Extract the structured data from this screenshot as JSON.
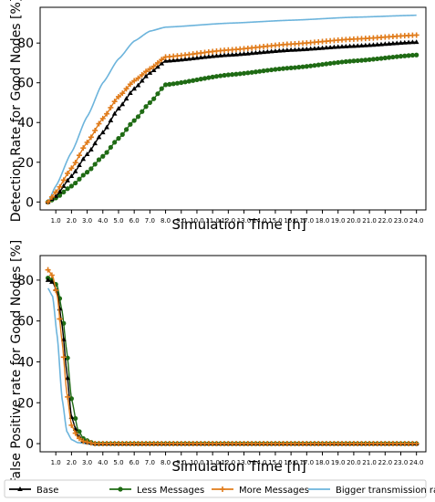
{
  "chart_data": [
    {
      "type": "line",
      "xlabel": "Simulation Time [h]",
      "ylabel": "Detection Rate for Good Nodes [%]",
      "xlim": [
        0.0,
        24.6
      ],
      "ylim": [
        -4,
        98
      ],
      "xticks": [
        "1.0",
        "2.0",
        "3.0",
        "4.0",
        "5.0",
        "6.0",
        "7.0",
        "8.0",
        "9.0",
        "10.0",
        "11.0",
        "12.0",
        "13.0",
        "14.0",
        "15.0",
        "16.0",
        "17.0",
        "18.0",
        "19.0",
        "20.0",
        "21.0",
        "22.0",
        "23.0",
        "24.0"
      ],
      "yticks": [
        "0",
        "20",
        "40",
        "60",
        "80"
      ],
      "x_range": [
        0.5,
        24.0
      ],
      "series": [
        {
          "name": "Base",
          "color": "#000000",
          "marker": "triangle",
          "knots": [
            [
              0.5,
              0
            ],
            [
              1.0,
              3
            ],
            [
              2.0,
              13
            ],
            [
              3.0,
              24
            ],
            [
              4.0,
              35
            ],
            [
              5.0,
              47
            ],
            [
              6.0,
              57
            ],
            [
              7.0,
              65
            ],
            [
              8.0,
              71
            ],
            [
              12.0,
              74
            ],
            [
              16.0,
              76.5
            ],
            [
              20.0,
              78.5
            ],
            [
              24.0,
              80.5
            ]
          ]
        },
        {
          "name": "Less Messages",
          "color": "#1f6b14",
          "marker": "circle",
          "knots": [
            [
              0.5,
              0
            ],
            [
              1.0,
              2
            ],
            [
              2.0,
              8
            ],
            [
              3.0,
              15
            ],
            [
              4.0,
              23
            ],
            [
              5.0,
              32
            ],
            [
              6.0,
              41
            ],
            [
              7.0,
              50
            ],
            [
              8.0,
              59
            ],
            [
              12.0,
              64
            ],
            [
              16.0,
              67.5
            ],
            [
              20.0,
              71
            ],
            [
              24.0,
              74
            ]
          ]
        },
        {
          "name": "More Messages",
          "color": "#e07b1a",
          "marker": "plus",
          "knots": [
            [
              0.5,
              0
            ],
            [
              1.0,
              5
            ],
            [
              2.0,
              17
            ],
            [
              3.0,
              30
            ],
            [
              4.0,
              42
            ],
            [
              5.0,
              53
            ],
            [
              6.0,
              61
            ],
            [
              7.0,
              67
            ],
            [
              8.0,
              73
            ],
            [
              12.0,
              76.5
            ],
            [
              16.0,
              79.5
            ],
            [
              20.0,
              82
            ],
            [
              24.0,
              84
            ]
          ]
        },
        {
          "name": "Bigger transmission rate",
          "color": "#6cb4dc",
          "marker": "none",
          "knots": [
            [
              0.5,
              0
            ],
            [
              1.0,
              8
            ],
            [
              2.0,
              25
            ],
            [
              3.0,
              43
            ],
            [
              4.0,
              60
            ],
            [
              5.0,
              72
            ],
            [
              6.0,
              81
            ],
            [
              7.0,
              86
            ],
            [
              8.0,
              88
            ],
            [
              12.0,
              90
            ],
            [
              16.0,
              91.5
            ],
            [
              20.0,
              93
            ],
            [
              24.0,
              94
            ]
          ]
        }
      ]
    },
    {
      "type": "line",
      "xlabel": "Simulation Time [h]",
      "ylabel": "False Positive rate for Good Nodes [%]",
      "xlim": [
        0.0,
        24.6
      ],
      "ylim": [
        -4,
        92
      ],
      "xticks": [
        "1.0",
        "2.0",
        "3.0",
        "4.0",
        "5.0",
        "6.0",
        "7.0",
        "8.0",
        "9.0",
        "10.0",
        "11.0",
        "12.0",
        "13.0",
        "14.0",
        "15.0",
        "16.0",
        "17.0",
        "18.0",
        "19.0",
        "20.0",
        "21.0",
        "22.0",
        "23.0",
        "24.0"
      ],
      "yticks": [
        "0",
        "20",
        "40",
        "60",
        "80"
      ],
      "x_range": [
        0.5,
        24.0
      ],
      "series": [
        {
          "name": "Base",
          "color": "#000000",
          "marker": "triangle",
          "knots": [
            [
              0.5,
              80
            ],
            [
              0.8,
              79
            ],
            [
              1.1,
              74
            ],
            [
              1.4,
              58
            ],
            [
              1.7,
              35
            ],
            [
              2.0,
              13
            ],
            [
              2.4,
              4
            ],
            [
              2.8,
              1
            ],
            [
              3.5,
              0
            ],
            [
              24.0,
              0
            ]
          ]
        },
        {
          "name": "Less Messages",
          "color": "#1f6b14",
          "marker": "circle",
          "knots": [
            [
              0.5,
              81
            ],
            [
              0.8,
              80
            ],
            [
              1.1,
              77
            ],
            [
              1.4,
              65
            ],
            [
              1.7,
              45
            ],
            [
              2.0,
              22
            ],
            [
              2.4,
              7
            ],
            [
              2.8,
              2
            ],
            [
              3.5,
              0
            ],
            [
              24.0,
              0
            ]
          ]
        },
        {
          "name": "More Messages",
          "color": "#e07b1a",
          "marker": "plus",
          "knots": [
            [
              0.5,
              85
            ],
            [
              0.8,
              82
            ],
            [
              1.1,
              72
            ],
            [
              1.4,
              50
            ],
            [
              1.7,
              25
            ],
            [
              2.0,
              9
            ],
            [
              2.4,
              3
            ],
            [
              2.8,
              1
            ],
            [
              3.5,
              0
            ],
            [
              24.0,
              0
            ]
          ]
        },
        {
          "name": "Bigger transmission rate",
          "color": "#6cb4dc",
          "marker": "none",
          "knots": [
            [
              0.5,
              76
            ],
            [
              0.8,
              72
            ],
            [
              1.1,
              52
            ],
            [
              1.4,
              22
            ],
            [
              1.7,
              6
            ],
            [
              2.0,
              2
            ],
            [
              2.4,
              0.5
            ],
            [
              3.0,
              0
            ],
            [
              24.0,
              0
            ]
          ]
        }
      ]
    }
  ],
  "legend": {
    "placement": "bottom",
    "items": [
      {
        "label": "Base",
        "color": "#000000",
        "marker": "triangle"
      },
      {
        "label": "Less Messages",
        "color": "#1f6b14",
        "marker": "circle"
      },
      {
        "label": "More Messages",
        "color": "#e07b1a",
        "marker": "plus"
      },
      {
        "label": "Bigger transmission rate",
        "color": "#6cb4dc",
        "marker": "none"
      }
    ]
  }
}
